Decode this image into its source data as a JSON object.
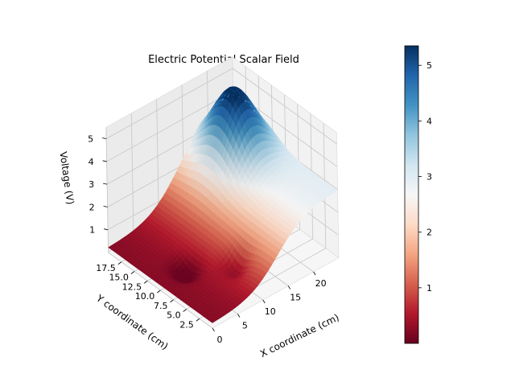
{
  "chart_data": {
    "type": "surface3d",
    "title": "Electric Potential Scalar Field",
    "xlabel": "X coordinate (cm)",
    "ylabel": "Y coordinate (cm)",
    "zlabel": "Voltage (V)",
    "xlim": [
      0,
      25
    ],
    "ylim": [
      0,
      20
    ],
    "zlim": [
      0,
      5.5
    ],
    "x_ticks": [
      "0",
      "5",
      "10",
      "15",
      "20"
    ],
    "y_ticks": [
      "2.5",
      "5.0",
      "7.5",
      "10.0",
      "12.5",
      "15.0",
      "17.5"
    ],
    "z_ticks": [
      "1",
      "2",
      "3",
      "4",
      "5"
    ],
    "grid": true,
    "colormap": "RdBu",
    "colorbar": {
      "range": [
        0.0,
        5.35
      ],
      "ticks": [
        "1",
        "2",
        "3",
        "4",
        "5"
      ]
    },
    "surface_features": {
      "background_trend": "voltage rises from about 0.2 V at x=0 to about 3 V at x=25",
      "peak": {
        "x": 20,
        "y": 15,
        "value": 5.35
      },
      "dips": [
        {
          "x": 5,
          "y": 10,
          "value": 0.0
        },
        {
          "x": 10,
          "y": 5,
          "value": 0.0
        }
      ]
    }
  }
}
